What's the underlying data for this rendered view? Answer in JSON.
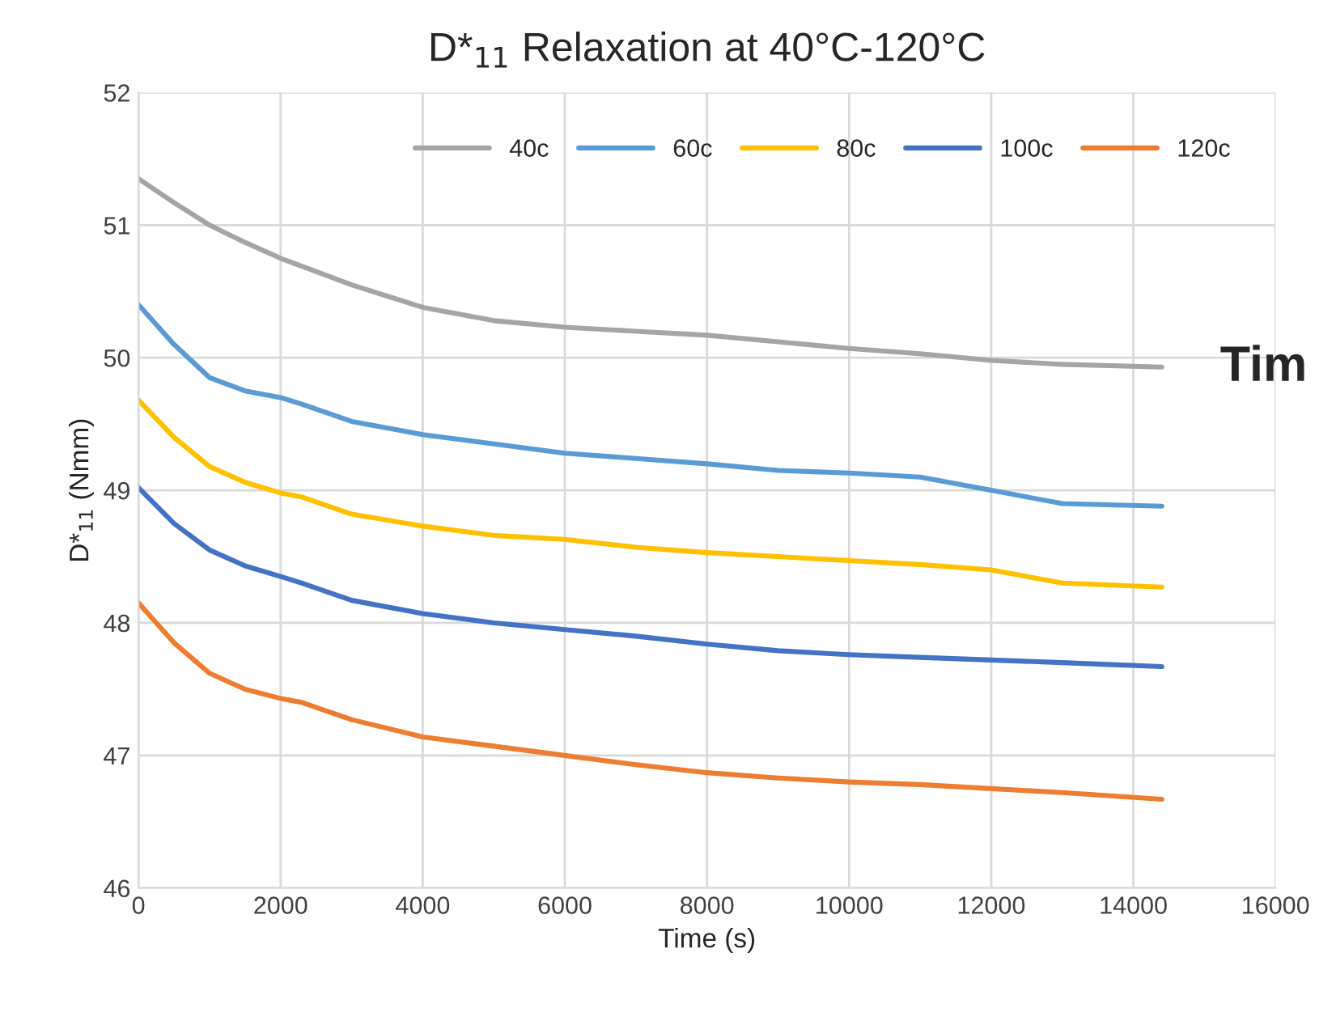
{
  "chart_data": {
    "type": "line",
    "title": "D*$_{11}$ Relaxation at 40°C-120°C",
    "xlabel": "Time (s)",
    "ylabel": "D*$_{11}$ (Nmm)",
    "x": [
      0,
      500,
      1000,
      1500,
      2000,
      2300,
      3000,
      4000,
      5000,
      6000,
      7000,
      8000,
      9000,
      10000,
      11000,
      12000,
      13000,
      14400
    ],
    "series": [
      {
        "name": "40c",
        "color": "#a5a5a5",
        "values": [
          51.35,
          51.17,
          51.0,
          50.87,
          50.75,
          50.69,
          50.55,
          50.38,
          50.28,
          50.23,
          50.2,
          50.17,
          50.12,
          50.07,
          50.03,
          49.98,
          49.95,
          49.93
        ]
      },
      {
        "name": "60c",
        "color": "#5b9bd5",
        "values": [
          50.4,
          50.1,
          49.85,
          49.75,
          49.7,
          49.65,
          49.52,
          49.42,
          49.35,
          49.28,
          49.24,
          49.2,
          49.15,
          49.13,
          49.1,
          49.0,
          48.9,
          48.88
        ]
      },
      {
        "name": "80c",
        "color": "#ffc000",
        "values": [
          49.68,
          49.4,
          49.18,
          49.06,
          48.98,
          48.95,
          48.82,
          48.73,
          48.66,
          48.63,
          48.57,
          48.53,
          48.5,
          48.47,
          48.44,
          48.4,
          48.3,
          48.27
        ]
      },
      {
        "name": "100c",
        "color": "#4472c4",
        "values": [
          49.02,
          48.75,
          48.55,
          48.43,
          48.35,
          48.3,
          48.17,
          48.07,
          48.0,
          47.95,
          47.9,
          47.84,
          47.79,
          47.76,
          47.74,
          47.72,
          47.7,
          47.67
        ]
      },
      {
        "name": "120c",
        "color": "#ed7d31",
        "values": [
          48.15,
          47.85,
          47.62,
          47.5,
          47.43,
          47.4,
          47.27,
          47.14,
          47.07,
          47.0,
          46.93,
          46.87,
          46.83,
          46.8,
          46.78,
          46.75,
          46.72,
          46.67
        ]
      }
    ],
    "xlim": [
      0,
      16000
    ],
    "xticks": [
      0,
      2000,
      4000,
      6000,
      8000,
      10000,
      12000,
      14000,
      16000
    ],
    "ylim": [
      46,
      52
    ],
    "yticks": [
      46,
      47,
      48,
      49,
      50,
      51,
      52
    ],
    "grid": true,
    "legend": "top right",
    "marker": "none",
    "line_style": "solid",
    "annotations": [
      "Tim"
    ]
  }
}
